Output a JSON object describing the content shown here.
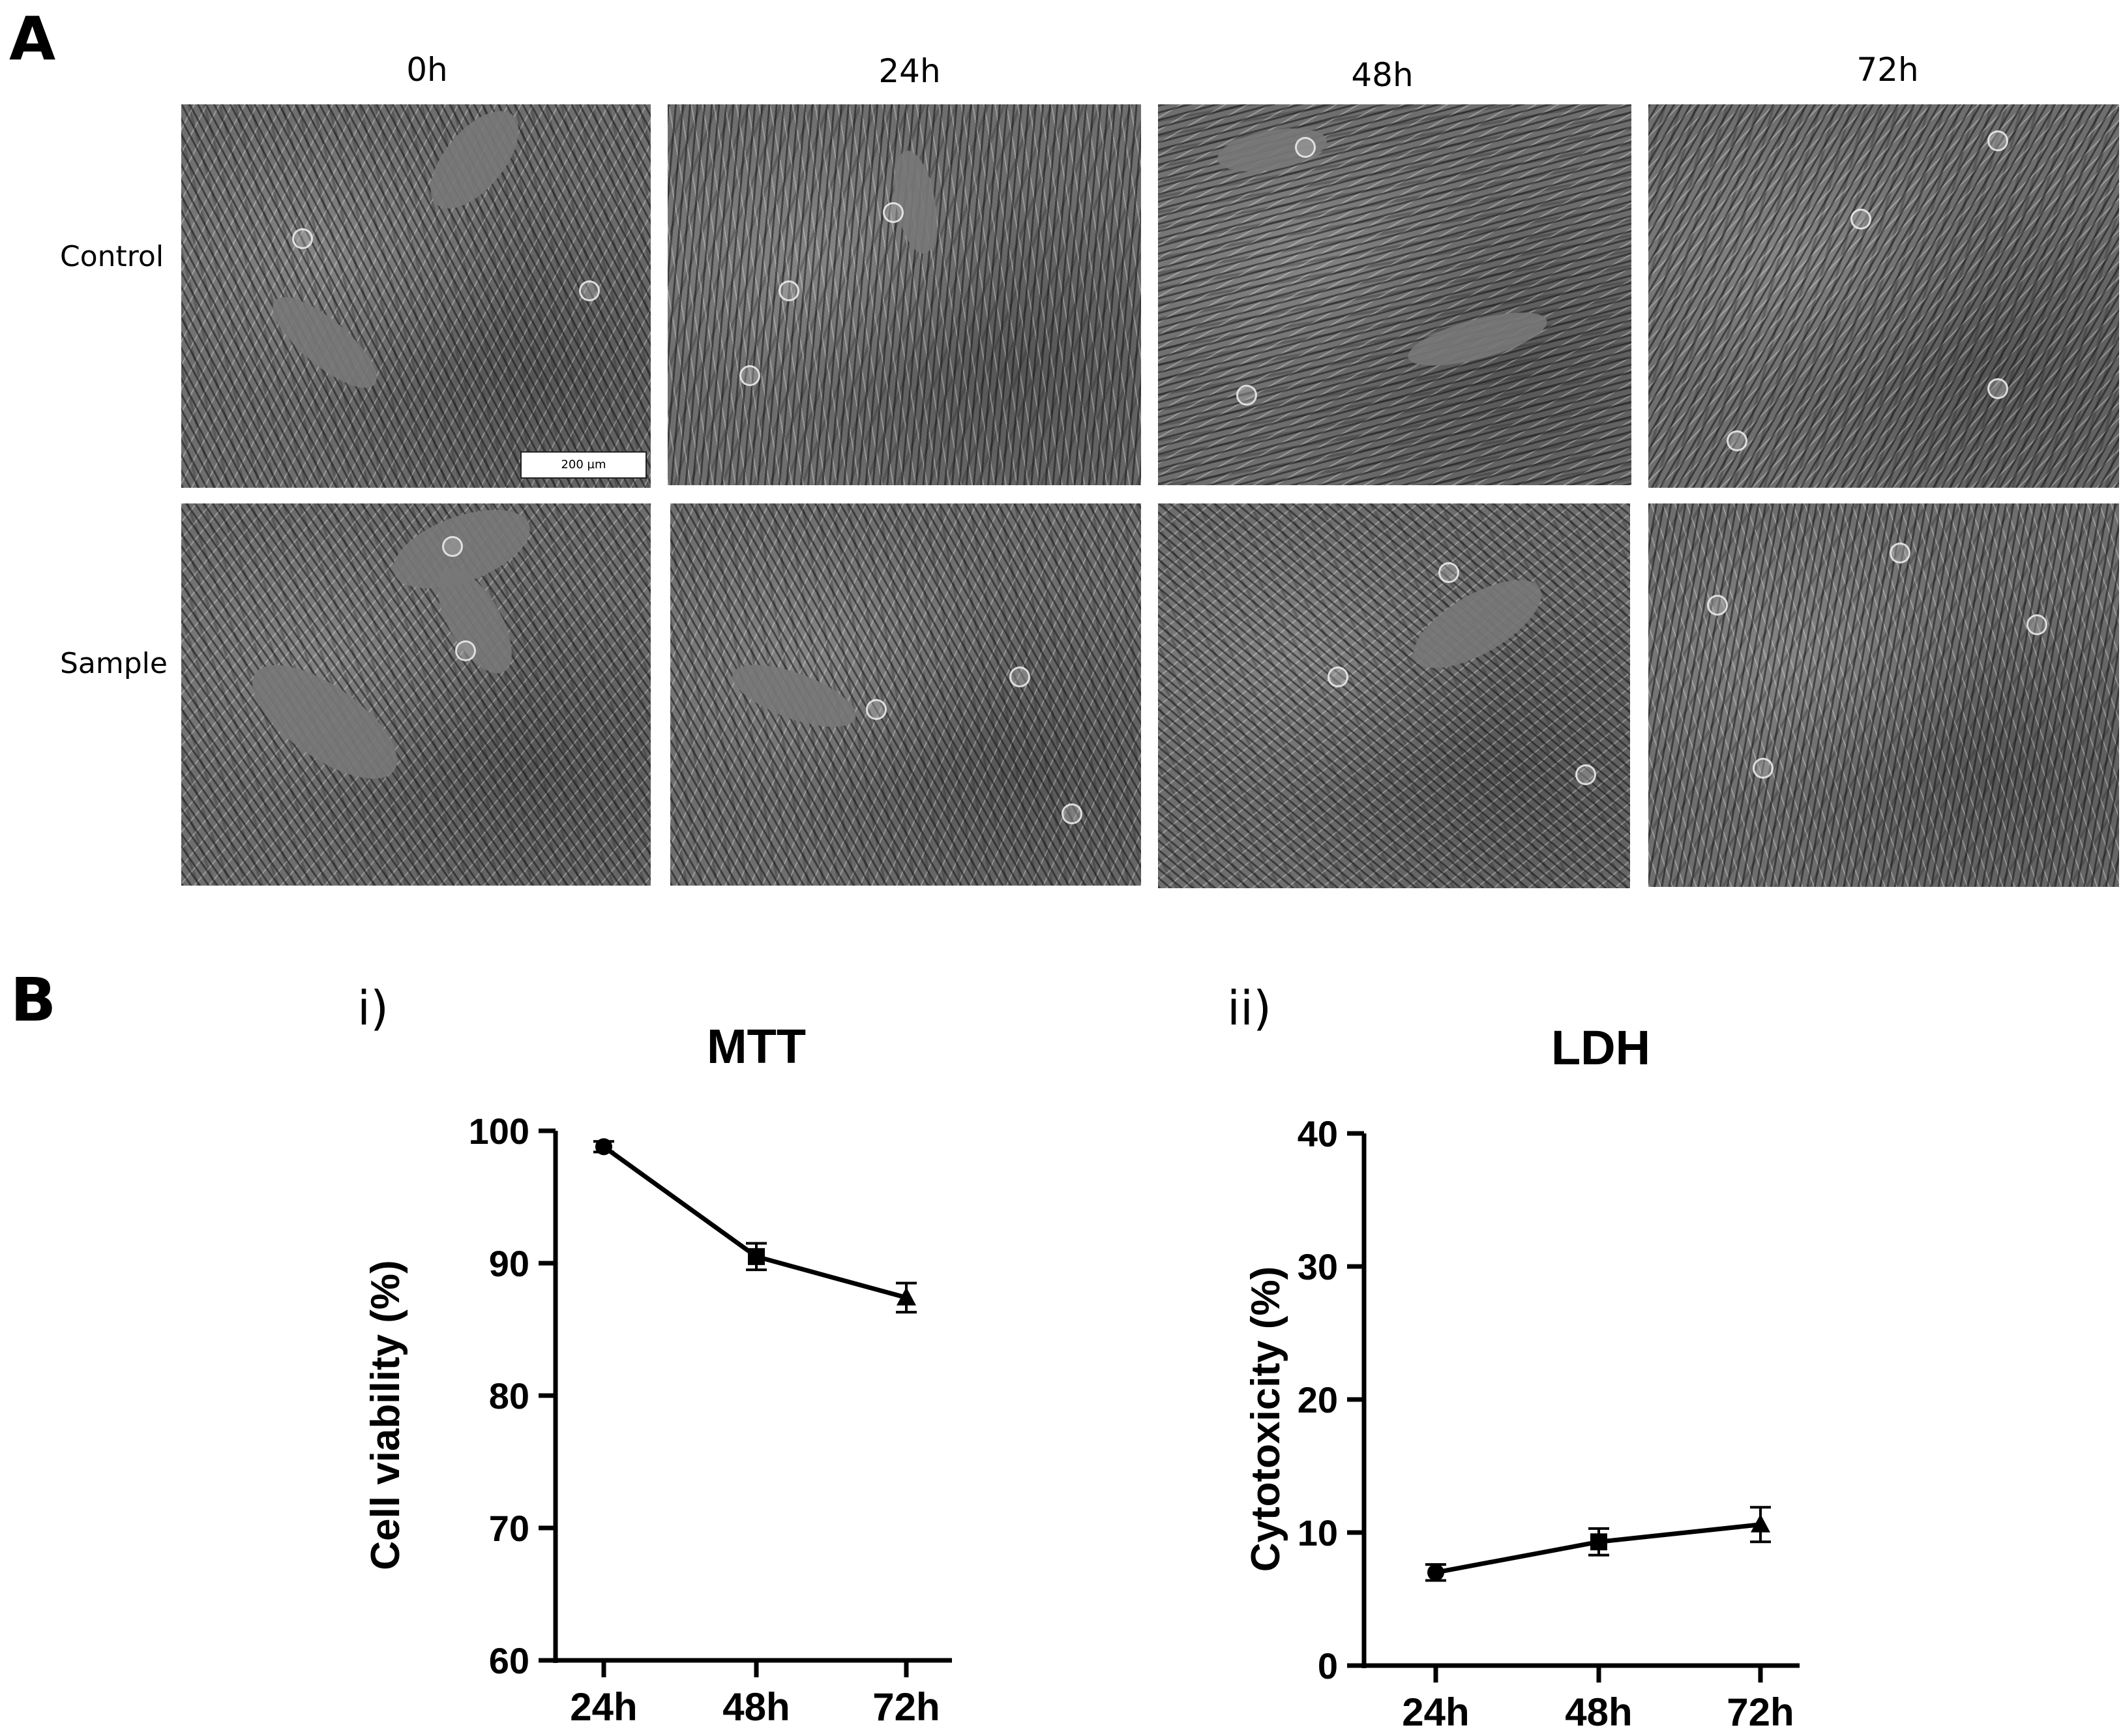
{
  "panel_a": {
    "letter": "A",
    "time_labels": [
      "0h",
      "24h",
      "48h",
      "72h"
    ],
    "row_labels": [
      "Control",
      "Sample"
    ],
    "scale_bar_text": "200 µm"
  },
  "panel_b": {
    "letter": "B",
    "sub_labels": [
      "i)",
      "ii)"
    ]
  },
  "chart_data": [
    {
      "type": "line",
      "title": "MTT",
      "xlabel": "",
      "ylabel": "Cell viability (%)",
      "categories": [
        "24h",
        "48h",
        "72h"
      ],
      "series": [
        {
          "name": "Cell viability",
          "values": [
            98.8,
            90.5,
            87.4
          ],
          "errors": [
            0.4,
            1.0,
            1.1
          ],
          "markers": [
            "circle",
            "square",
            "triangle"
          ]
        }
      ],
      "ylim": [
        60,
        100
      ],
      "yticks": [
        60,
        70,
        80,
        90,
        100
      ],
      "grid": false
    },
    {
      "type": "line",
      "title": "LDH",
      "xlabel": "",
      "ylabel": "Cytotoxicity (%)",
      "categories": [
        "24h",
        "48h",
        "72h"
      ],
      "series": [
        {
          "name": "Cytotoxicity",
          "values": [
            7.0,
            9.3,
            10.6
          ],
          "errors": [
            0.6,
            1.0,
            1.3
          ],
          "markers": [
            "circle",
            "square",
            "triangle"
          ]
        }
      ],
      "ylim": [
        0,
        40
      ],
      "yticks": [
        0,
        10,
        20,
        30,
        40
      ],
      "grid": false
    }
  ]
}
